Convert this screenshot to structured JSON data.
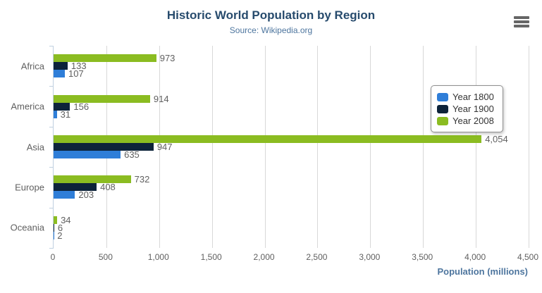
{
  "header": {
    "title": "Historic World Population by Region",
    "subtitle": "Source: Wikipedia.org",
    "menu_icon": "hamburger-icon"
  },
  "chart_data": {
    "type": "bar",
    "orientation": "horizontal",
    "title": "Historic World Population by Region",
    "subtitle": "Source: Wikipedia.org",
    "categories": [
      "Africa",
      "America",
      "Asia",
      "Europe",
      "Oceania"
    ],
    "series": [
      {
        "name": "Year 1800",
        "color": "#2f7ed8",
        "values": [
          107,
          31,
          635,
          203,
          2
        ]
      },
      {
        "name": "Year 1900",
        "color": "#0d233a",
        "values": [
          133,
          156,
          947,
          408,
          6
        ]
      },
      {
        "name": "Year 2008",
        "color": "#8bbc21",
        "values": [
          973,
          914,
          4054,
          732,
          34
        ]
      }
    ],
    "series_render_order": "last-series-on-top-of-group",
    "data_labels": true,
    "xlabel": "Population (millions)",
    "ylabel": "",
    "xlim": [
      0,
      4500
    ],
    "tick_interval": 500,
    "tick_labels": [
      "0",
      "500",
      "1,000",
      "1,500",
      "2,000",
      "2,500",
      "3,000",
      "3,500",
      "4,000",
      "4,500"
    ],
    "grid": true,
    "legend_position": "right",
    "legend_entries": [
      "Year 1800",
      "Year 1900",
      "Year 2008"
    ]
  },
  "colors": {
    "title": "#274b6d",
    "subtitle": "#4d759e",
    "axis_title": "#4d759e",
    "axis_line": "#c0d0e0",
    "grid_line": "#d8d8d8",
    "tick_label": "#606060",
    "data_label": "#606060",
    "legend_border": "#909090",
    "menu_icon": "#666666"
  }
}
